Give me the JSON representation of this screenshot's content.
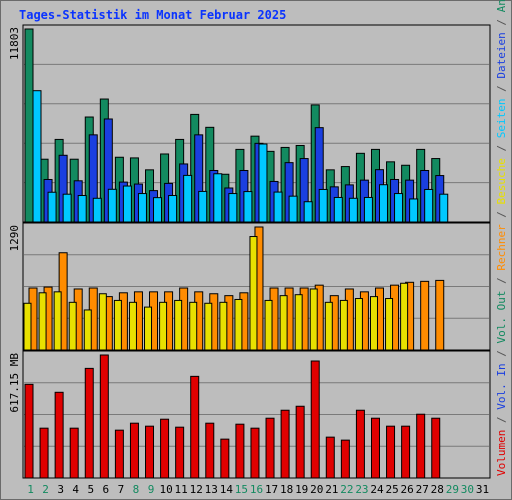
{
  "title": "Tages-Statistik im Monat Februar 2025",
  "right_legend": [
    {
      "text": "Volumen",
      "color": "#e00000"
    },
    {
      "text": " / ",
      "color": "#555555"
    },
    {
      "text": "Vol. In",
      "color": "#1a3fe0"
    },
    {
      "text": " / ",
      "color": "#555555"
    },
    {
      "text": "Vol. Out",
      "color": "#138a60"
    },
    {
      "text": " / ",
      "color": "#555555"
    },
    {
      "text": "Rechner",
      "color": "#ff8c00"
    },
    {
      "text": " / ",
      "color": "#555555"
    },
    {
      "text": "Besuche",
      "color": "#e8e000"
    },
    {
      "text": " / ",
      "color": "#555555"
    },
    {
      "text": "Seiten",
      "color": "#00c8ff"
    },
    {
      "text": " / ",
      "color": "#555555"
    },
    {
      "text": "Dateien",
      "color": "#1a3fe0"
    },
    {
      "text": " / ",
      "color": "#555555"
    },
    {
      "text": "Anfragen",
      "color": "#138a60"
    }
  ],
  "chart_data": {
    "type": "bar",
    "days": [
      "1",
      "2",
      "3",
      "4",
      "5",
      "6",
      "7",
      "8",
      "9",
      "10",
      "11",
      "12",
      "13",
      "14",
      "15",
      "16",
      "17",
      "18",
      "19",
      "20",
      "21",
      "22",
      "23",
      "24",
      "25",
      "26",
      "27",
      "28",
      "29",
      "30",
      "31"
    ],
    "weekend_days": [
      "1",
      "2",
      "8",
      "9",
      "15",
      "16",
      "22",
      "23",
      "29",
      "30"
    ],
    "panels": [
      {
        "ymax_label": "11803",
        "ymax": 11803,
        "series": [
          {
            "name": "Anfragen",
            "color": "#138a60",
            "values": [
              11803,
              3840,
              5050,
              3840,
              6420,
              7520,
              3960,
              3920,
              3190,
              4160,
              5050,
              6580,
              5790,
              2920,
              4440,
              5250,
              4320,
              4560,
              4680,
              7160,
              3190,
              3390,
              4200,
              4440,
              3680,
              3470,
              4440,
              3880,
              null,
              null,
              null
            ]
          },
          {
            "name": "Dateien",
            "color": "#1a3fe0",
            "values": [
              null,
              2600,
              4080,
              2520,
              5330,
              6300,
              2440,
              2320,
              1920,
              2360,
              3550,
              5330,
              3150,
              2080,
              3150,
              4810,
              2480,
              3630,
              3880,
              5770,
              2150,
              2270,
              2560,
              3200,
              2600,
              2560,
              3150,
              2840,
              null,
              null,
              null
            ]
          },
          {
            "name": "Seiten",
            "color": "#00c8ff",
            "values": [
              8030,
              1820,
              1700,
              1620,
              1450,
              2000,
              2200,
              1740,
              1490,
              1620,
              2850,
              1870,
              2950,
              1740,
              1860,
              4770,
              1830,
              1580,
              1240,
              1990,
              1500,
              1450,
              1500,
              2280,
              1740,
              1410,
              1990,
              1700,
              null,
              null,
              null
            ]
          }
        ]
      },
      {
        "ymax_label": "1290",
        "ymax": 1290,
        "series": [
          {
            "name": "Rechner",
            "color": "#ff8c00",
            "values": [
              650,
              660,
              1020,
              640,
              650,
              560,
              600,
              610,
              610,
              610,
              650,
              610,
              590,
              570,
              600,
              1290,
              650,
              650,
              650,
              680,
              570,
              640,
              610,
              650,
              680,
              710,
              720,
              730,
              null,
              null,
              null
            ]
          },
          {
            "name": "Besuche",
            "color": "#e8e000",
            "values": [
              490,
              600,
              610,
              500,
              420,
              590,
              520,
              500,
              450,
              500,
              520,
              500,
              490,
              500,
              530,
              1190,
              520,
              570,
              580,
              640,
              500,
              520,
              540,
              560,
              540,
              700,
              null,
              null,
              null,
              null,
              null
            ]
          }
        ]
      },
      {
        "ymax_label": "617.15 MB",
        "ymax": 617.15,
        "series": [
          {
            "name": "Volumen",
            "color": "#e00000",
            "values": [
              470,
              250,
              430,
              250,
              550,
              617.15,
              240,
              275,
              260,
              295,
              255,
              510,
              275,
              195,
              270,
              250,
              300,
              340,
              360,
              587,
              205,
              190,
              340,
              300,
              260,
              260,
              320,
              300,
              null,
              null,
              null
            ]
          }
        ]
      }
    ]
  }
}
